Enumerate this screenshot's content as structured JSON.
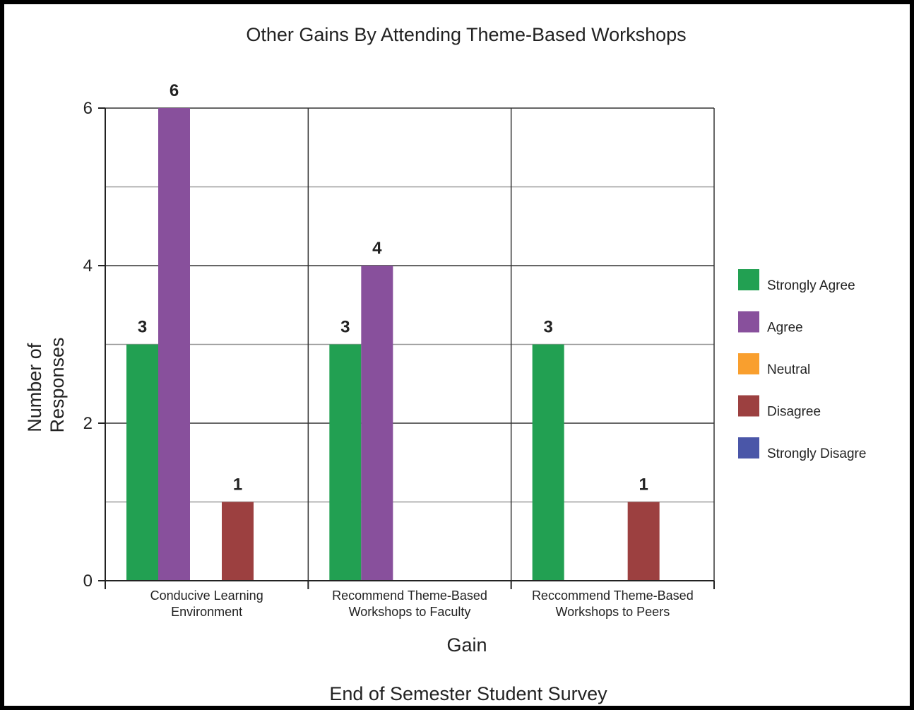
{
  "chart_data": {
    "type": "bar",
    "title": "Other Gains By Attending Theme-Based Workshops",
    "xlabel": "Gain",
    "ylabel_lines": [
      "Number of",
      "Responses"
    ],
    "footer": "End of Semester Student Survey",
    "categories": [
      [
        "Conducive Learning",
        "Environment"
      ],
      [
        "Recommend Theme-Based",
        "Workshops to Faculty"
      ],
      [
        "Reccommend Theme-Based",
        "Workshops to Peers"
      ]
    ],
    "series": [
      {
        "name": "Strongly Agree",
        "color": "#22a052",
        "values": [
          3,
          3,
          3
        ]
      },
      {
        "name": "Agree",
        "color": "#88509c",
        "values": [
          6,
          4,
          0
        ]
      },
      {
        "name": "Neutral",
        "color": "#f99f2e",
        "values": [
          0,
          0,
          0
        ]
      },
      {
        "name": "Disagree",
        "color": "#9c4040",
        "values": [
          1,
          0,
          1
        ]
      },
      {
        "name": "Strongly Disagre",
        "color": "#4a56a8",
        "values": [
          0,
          0,
          0
        ]
      }
    ],
    "ylim": [
      0,
      6
    ],
    "yticks": [
      0,
      2,
      4,
      6
    ],
    "grid": true,
    "legend": "right"
  }
}
